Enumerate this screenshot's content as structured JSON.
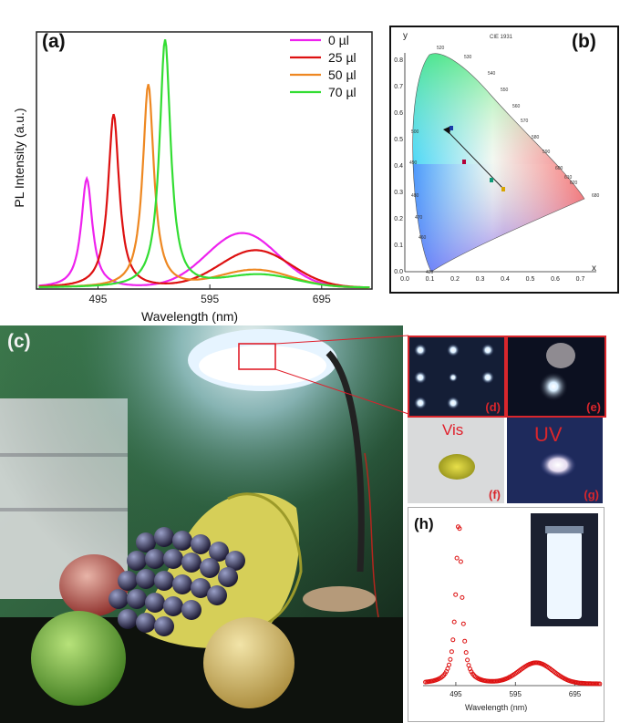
{
  "panels": {
    "a": {
      "label": "(a)",
      "ylabel": "PL Intensity (a.u.)",
      "xlabel": "Wavelength (nm)",
      "xticks": [
        "495",
        "595",
        "695"
      ],
      "legend": [
        {
          "label": "0   µl",
          "color": "#ee22ee"
        },
        {
          "label": "25 µl",
          "color": "#dd1111"
        },
        {
          "label": "50 µl",
          "color": "#ee8822"
        },
        {
          "label": "70 µl",
          "color": "#33dd33"
        }
      ]
    },
    "b": {
      "label": "(b)",
      "title": "CIE 1931",
      "xaxis": "x",
      "yaxis": "y",
      "xticks": [
        "0.0",
        "0.1",
        "0.2",
        "0.3",
        "0.4",
        "0.5",
        "0.6",
        "0.7"
      ],
      "yticks": [
        "0.0",
        "0.1",
        "0.2",
        "0.3",
        "0.4",
        "0.5",
        "0.6",
        "0.7",
        "0.8"
      ],
      "locus_labels": [
        "520",
        "530",
        "540",
        "550",
        "560",
        "570",
        "580",
        "590",
        "600",
        "610",
        "620",
        "680",
        "500",
        "490",
        "480",
        "470",
        "460",
        "420"
      ]
    },
    "c": {
      "label": "(c)"
    },
    "d": {
      "label": "(d)"
    },
    "e": {
      "label": "(e)"
    },
    "f": {
      "label": "(f)",
      "caption": "Vis"
    },
    "g": {
      "label": "(g)",
      "caption": "UV"
    },
    "h": {
      "label": "(h)",
      "xlabel": "Wavelength (nm)",
      "xticks": [
        "495",
        "595",
        "695"
      ]
    }
  },
  "chart_data": [
    {
      "type": "line",
      "title": "",
      "xlabel": "Wavelength (nm)",
      "ylabel": "PL Intensity (a.u.)",
      "xlim": [
        440,
        740
      ],
      "ylim": [
        0,
        1.0
      ],
      "series": [
        {
          "name": "0   µl",
          "color": "#ee22ee",
          "peak_nm": 485,
          "peak_height": 0.44,
          "broad_nm": 624,
          "broad_height": 0.22
        },
        {
          "name": "25 µl",
          "color": "#dd1111",
          "peak_nm": 509,
          "peak_height": 0.7,
          "broad_nm": 636,
          "broad_height": 0.15
        },
        {
          "name": "50 µl",
          "color": "#ee8822",
          "peak_nm": 540,
          "peak_height": 0.82,
          "broad_nm": 636,
          "broad_height": 0.07
        },
        {
          "name": "70 µl",
          "color": "#33dd33",
          "peak_nm": 555,
          "peak_height": 1.0,
          "broad_nm": 640,
          "broad_height": 0.05
        }
      ]
    },
    {
      "type": "scatter",
      "title": "",
      "xlabel": "Wavelength (nm)",
      "ylabel": "",
      "xlim": [
        440,
        740
      ],
      "series": [
        {
          "name": "",
          "color": "#dd1111",
          "peak_nm": 500,
          "peak_height": 0.93,
          "broad_nm": 630,
          "broad_height": 0.12
        }
      ]
    }
  ]
}
